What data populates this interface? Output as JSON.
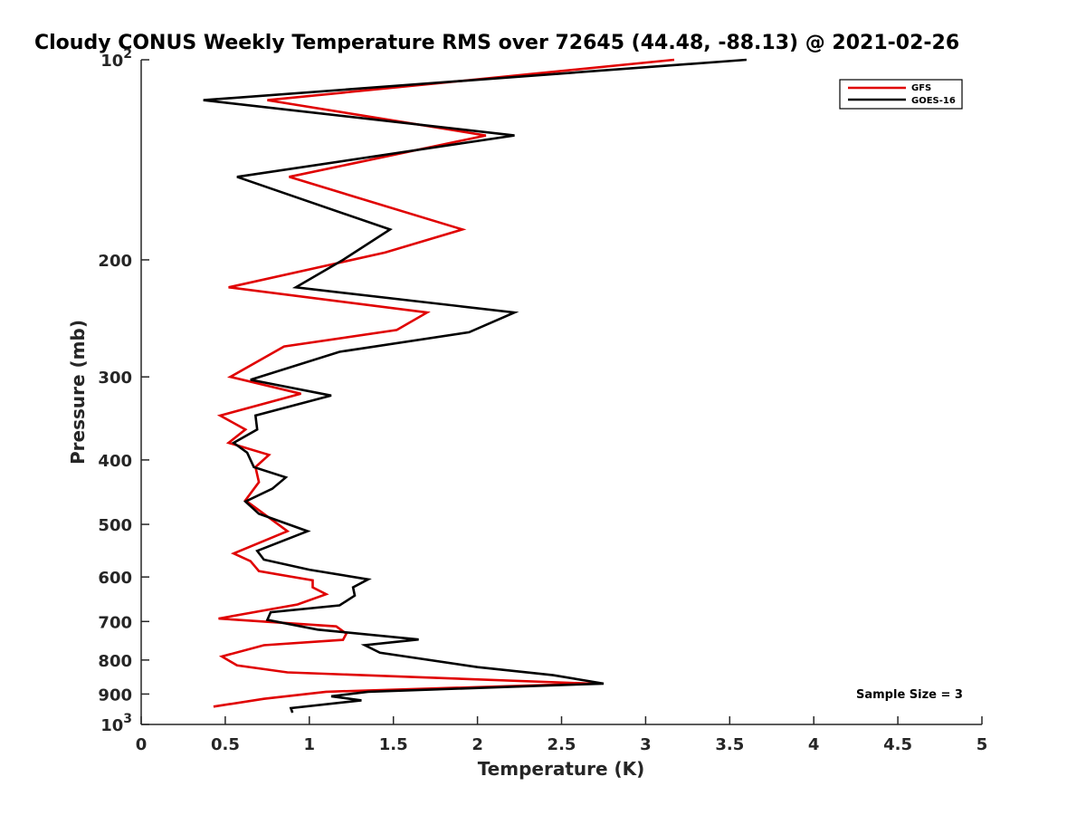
{
  "chart_data": {
    "type": "line",
    "title": "Cloudy CONUS Weekly Temperature RMS over 72645 (44.48, -88.13) @ 2021-02-26",
    "xlabel": "Temperature (K)",
    "ylabel": "Pressure (mb)",
    "xlim": [
      0,
      5
    ],
    "ylim": [
      100,
      1000
    ],
    "y_scale": "log",
    "y_reversed": true,
    "x_ticks": [
      "0",
      "0.5",
      "1",
      "1.5",
      "2",
      "2.5",
      "3",
      "3.5",
      "4",
      "4.5",
      "5"
    ],
    "y_ticks": [
      {
        "value": 100,
        "label": "10",
        "exp": "2"
      },
      {
        "value": 200,
        "label": "200"
      },
      {
        "value": 300,
        "label": "300"
      },
      {
        "value": 400,
        "label": "400"
      },
      {
        "value": 500,
        "label": "500"
      },
      {
        "value": 600,
        "label": "600"
      },
      {
        "value": 700,
        "label": "700"
      },
      {
        "value": 800,
        "label": "800"
      },
      {
        "value": 900,
        "label": "900"
      },
      {
        "value": 1000,
        "label": "10",
        "exp": "3"
      }
    ],
    "grid": false,
    "legend_position": "top-right",
    "annotation": "Sample Size = 3",
    "series": [
      {
        "name": "GFS",
        "color": "#e00000",
        "points": [
          [
            3.17,
            100
          ],
          [
            0.75,
            115
          ],
          [
            2.05,
            130
          ],
          [
            0.88,
            150
          ],
          [
            1.91,
            180
          ],
          [
            1.45,
            195
          ],
          [
            0.52,
            220
          ],
          [
            1.7,
            240
          ],
          [
            1.52,
            255
          ],
          [
            0.85,
            270
          ],
          [
            0.53,
            300
          ],
          [
            0.95,
            318
          ],
          [
            0.47,
            343
          ],
          [
            0.62,
            360
          ],
          [
            0.52,
            377
          ],
          [
            0.76,
            393
          ],
          [
            0.68,
            410
          ],
          [
            0.7,
            432
          ],
          [
            0.62,
            460
          ],
          [
            0.7,
            476
          ],
          [
            0.87,
            512
          ],
          [
            0.55,
            553
          ],
          [
            0.65,
            568
          ],
          [
            0.7,
            588
          ],
          [
            1.02,
            607
          ],
          [
            1.02,
            622
          ],
          [
            1.1,
            637
          ],
          [
            0.93,
            660
          ],
          [
            0.46,
            693
          ],
          [
            1.16,
            712
          ],
          [
            1.22,
            730
          ],
          [
            1.2,
            746
          ],
          [
            0.73,
            760
          ],
          [
            0.48,
            790
          ],
          [
            0.57,
            815
          ],
          [
            0.87,
            835
          ],
          [
            2.68,
            868
          ],
          [
            1.1,
            893
          ],
          [
            0.73,
            915
          ],
          [
            0.43,
            940
          ]
        ]
      },
      {
        "name": "GOES-16",
        "color": "#000000",
        "points": [
          [
            3.6,
            100
          ],
          [
            0.37,
            115
          ],
          [
            2.22,
            130
          ],
          [
            0.57,
            150
          ],
          [
            1.48,
            180
          ],
          [
            1.2,
            200
          ],
          [
            0.92,
            220
          ],
          [
            2.22,
            240
          ],
          [
            1.95,
            257
          ],
          [
            1.18,
            275
          ],
          [
            0.65,
            303
          ],
          [
            1.13,
            320
          ],
          [
            0.68,
            343
          ],
          [
            0.69,
            360
          ],
          [
            0.55,
            377
          ],
          [
            0.63,
            390
          ],
          [
            0.67,
            410
          ],
          [
            0.86,
            425
          ],
          [
            0.78,
            442
          ],
          [
            0.62,
            462
          ],
          [
            0.7,
            482
          ],
          [
            0.99,
            512
          ],
          [
            0.69,
            548
          ],
          [
            0.73,
            565
          ],
          [
            1.0,
            585
          ],
          [
            1.35,
            605
          ],
          [
            1.26,
            622
          ],
          [
            1.27,
            640
          ],
          [
            1.18,
            662
          ],
          [
            0.77,
            678
          ],
          [
            0.75,
            696
          ],
          [
            1.05,
            720
          ],
          [
            1.65,
            745
          ],
          [
            1.33,
            760
          ],
          [
            1.42,
            780
          ],
          [
            2.0,
            820
          ],
          [
            2.45,
            843
          ],
          [
            2.75,
            868
          ],
          [
            1.35,
            893
          ],
          [
            1.13,
            907
          ],
          [
            1.31,
            920
          ],
          [
            0.89,
            945
          ],
          [
            0.9,
            960
          ]
        ]
      }
    ]
  }
}
